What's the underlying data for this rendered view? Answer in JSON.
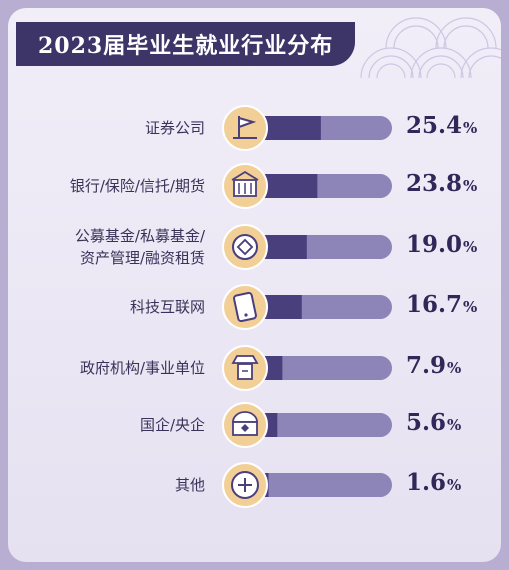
{
  "header": {
    "title": "2023届毕业生就业行业分布"
  },
  "colors": {
    "background": "#b8aed2",
    "card": "#f1eef8",
    "title_bg": "#3d3468",
    "bar_track": "#8d84b8",
    "bar_fill": "#4a3f7d",
    "icon_bg": "#f2cf97",
    "text": "#2f2858"
  },
  "chart_data": {
    "type": "bar",
    "orientation": "horizontal",
    "title": "2023届毕业生就业行业分布",
    "unit": "%",
    "categories": [
      "证券公司",
      "银行/保险/信托/期货",
      "公募基金/私募基金/资产管理/融资租赁",
      "科技互联网",
      "政府机构/事业单位",
      "国企/央企",
      "其他"
    ],
    "category_lines": [
      [
        "证券公司"
      ],
      [
        "银行/保险/信托/期货"
      ],
      [
        "公募基金/私募基金/",
        "资产管理/融资租赁"
      ],
      [
        "科技互联网"
      ],
      [
        "政府机构/事业单位"
      ],
      [
        "国企/央企"
      ],
      [
        "其他"
      ]
    ],
    "values": [
      25.4,
      23.8,
      19.0,
      16.7,
      7.9,
      5.6,
      1.6
    ],
    "value_labels": [
      "25.4",
      "23.8",
      "19.0",
      "16.7",
      "7.9",
      "5.6",
      "1.6"
    ],
    "icons": [
      "flag-icon",
      "building-icon",
      "coin-icon",
      "phone-icon",
      "official-icon",
      "enterprise-icon",
      "plus-icon"
    ],
    "xlim": [
      0,
      100
    ]
  }
}
